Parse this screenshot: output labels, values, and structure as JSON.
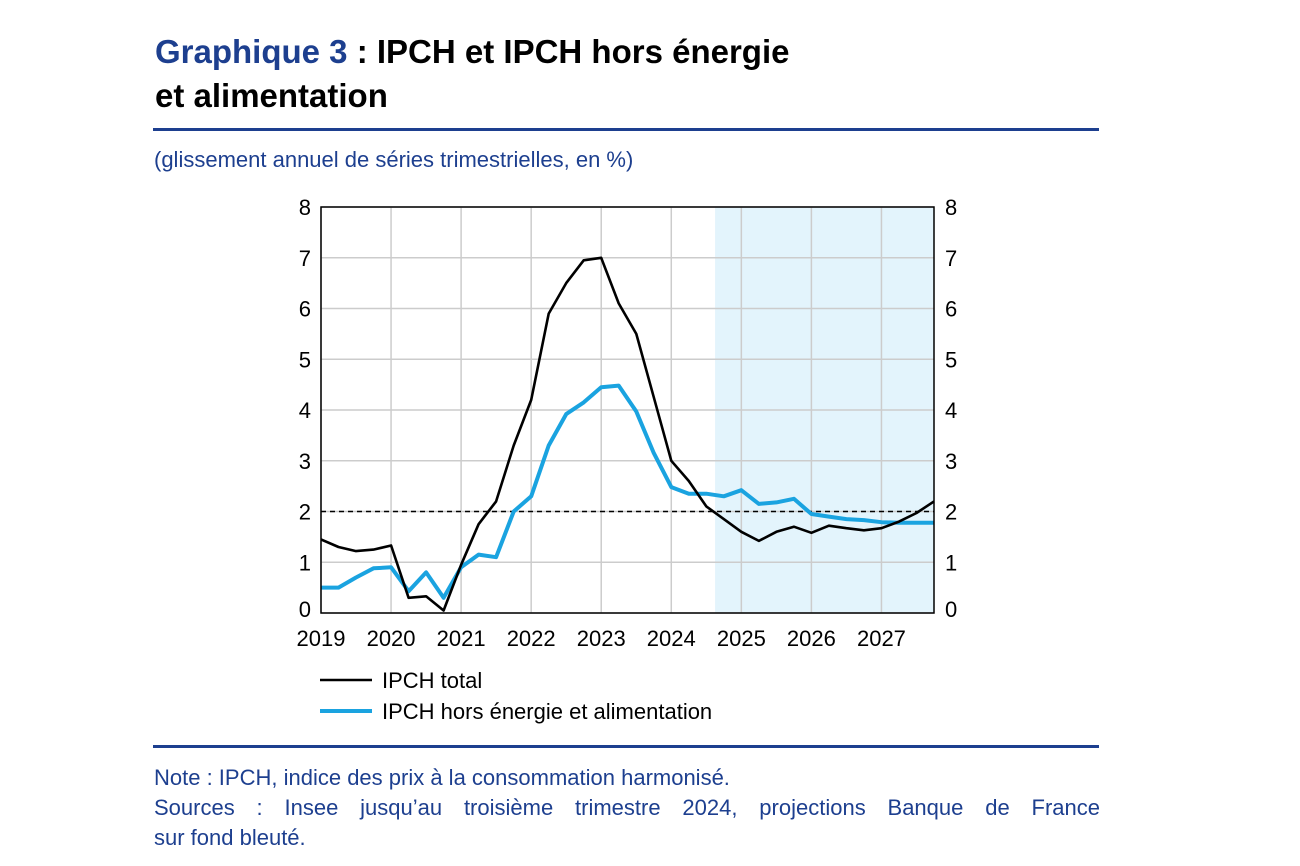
{
  "header": {
    "title_label": "Graphique 3",
    "title_rest": " : IPCH et IPCH hors énergie",
    "title_line2": "et alimentation",
    "subtitle": "(glissement annuel de séries trimestrielles, en %)"
  },
  "footer": {
    "note": "Note : IPCH, indice des prix à la consommation harmonisé.",
    "sources_words": [
      "Sources",
      ":",
      "Insee",
      "jusqu’au",
      "troisième",
      "trimestre",
      "2024,",
      "projections",
      "Banque",
      "de",
      "France"
    ],
    "sources_line2": "sur fond bleuté."
  },
  "colors": {
    "title_blue": "#1d3f8f",
    "series_total": "#000000",
    "series_core": "#1aa3e0",
    "projection_shade": "#e3f4fc",
    "grid": "#cccccc"
  },
  "chart_data": {
    "type": "line",
    "x_tick_labels": [
      "2019",
      "2020",
      "2021",
      "2022",
      "2023",
      "2024",
      "2025",
      "2026",
      "2027"
    ],
    "x_range": [
      "2019-Q1",
      "2027-Q4"
    ],
    "ylim": [
      0,
      8
    ],
    "y_ticks": [
      0,
      1,
      2,
      3,
      4,
      5,
      6,
      7,
      8
    ],
    "y_axis_both_sides": true,
    "grid": true,
    "reference_line": {
      "y": 2,
      "style": "dashed"
    },
    "projection_period": {
      "from": "2024-Q4",
      "to": "2027-Q4"
    },
    "legend_position": "bottom-left",
    "x": [
      "2019-Q1",
      "2019-Q2",
      "2019-Q3",
      "2019-Q4",
      "2020-Q1",
      "2020-Q2",
      "2020-Q3",
      "2020-Q4",
      "2021-Q1",
      "2021-Q2",
      "2021-Q3",
      "2021-Q4",
      "2022-Q1",
      "2022-Q2",
      "2022-Q3",
      "2022-Q4",
      "2023-Q1",
      "2023-Q2",
      "2023-Q3",
      "2023-Q4",
      "2024-Q1",
      "2024-Q2",
      "2024-Q3",
      "2024-Q4",
      "2025-Q1",
      "2025-Q2",
      "2025-Q3",
      "2025-Q4",
      "2026-Q1",
      "2026-Q2",
      "2026-Q3",
      "2026-Q4",
      "2027-Q1",
      "2027-Q2",
      "2027-Q3",
      "2027-Q4"
    ],
    "series": [
      {
        "name": "IPCH total",
        "color": "#000000",
        "values": [
          1.45,
          1.3,
          1.22,
          1.25,
          1.33,
          0.3,
          0.33,
          0.05,
          0.95,
          1.75,
          2.2,
          3.3,
          4.2,
          5.9,
          6.5,
          6.95,
          7.0,
          6.1,
          5.5,
          4.25,
          3.0,
          2.6,
          2.1,
          1.85,
          1.6,
          1.42,
          1.6,
          1.7,
          1.58,
          1.72,
          1.67,
          1.63,
          1.67,
          1.8,
          1.97,
          2.2
        ]
      },
      {
        "name": "IPCH hors énergie et alimentation",
        "color": "#1aa3e0",
        "values": [
          0.5,
          0.5,
          0.7,
          0.88,
          0.9,
          0.43,
          0.8,
          0.3,
          0.9,
          1.15,
          1.1,
          2.0,
          2.3,
          3.3,
          3.92,
          4.15,
          4.45,
          4.48,
          3.97,
          3.15,
          2.48,
          2.35,
          2.35,
          2.3,
          2.42,
          2.15,
          2.18,
          2.25,
          1.95,
          1.9,
          1.85,
          1.83,
          1.79,
          1.78,
          1.78,
          1.78
        ]
      }
    ]
  }
}
